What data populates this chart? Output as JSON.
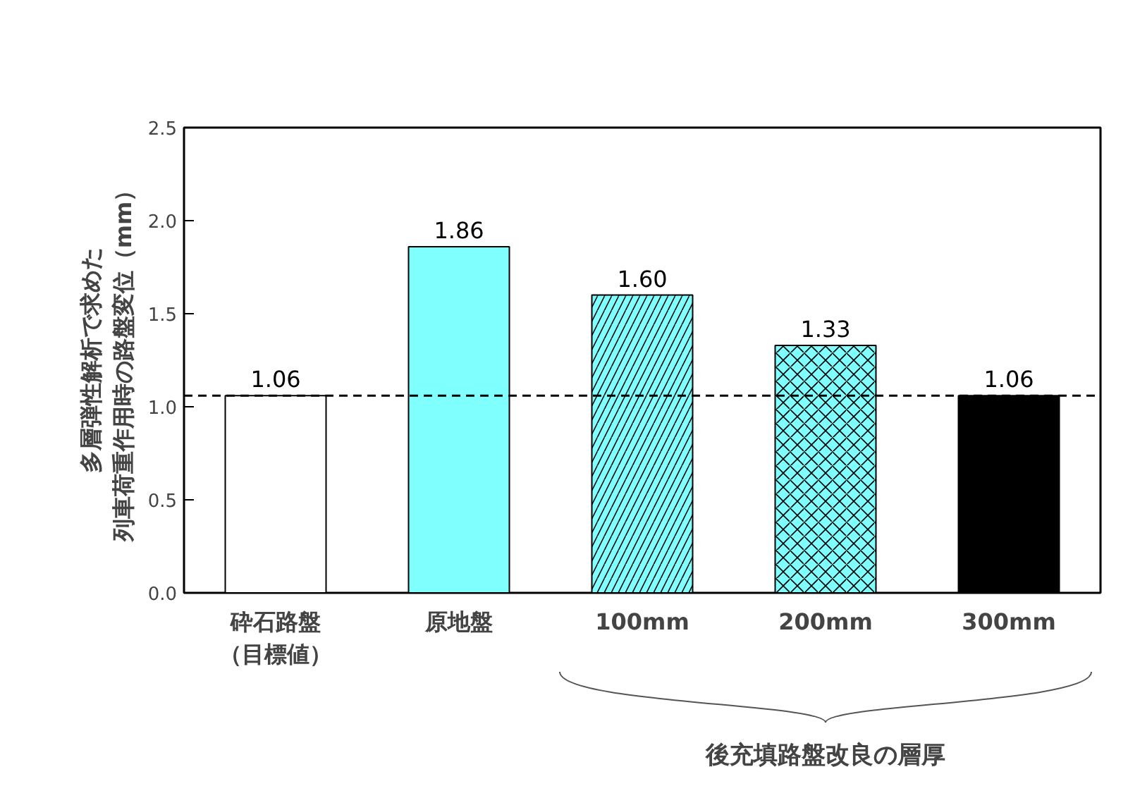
{
  "chart_data": {
    "type": "bar",
    "ylabel": "多層弾性解析で求めた列車荷重作用時の路盤変位（mm）",
    "categories": [
      "砕石路盤（目標値）",
      "原地盤",
      "100mm",
      "200mm",
      "300mm"
    ],
    "values": [
      1.06,
      1.86,
      1.6,
      1.33,
      1.06
    ],
    "value_labels": [
      "1.06",
      "1.86",
      "1.60",
      "1.33",
      "1.06"
    ],
    "colors": [
      "#ffffff",
      "#80ffff",
      "#80ffff",
      "#80ffff",
      "#000000"
    ],
    "ylim": [
      0,
      2.5
    ],
    "yticks": [
      {
        "value": 0,
        "label": "0.0"
      },
      {
        "value": 0.5,
        "label": "0.5"
      },
      {
        "value": 1,
        "label": "1.0"
      },
      {
        "value": 1.5,
        "label": "1.5"
      },
      {
        "value": 2,
        "label": "2.0"
      },
      {
        "value": 2.5,
        "label": "2.5"
      }
    ],
    "ref_lines": [
      {
        "axis": "y",
        "value": 1.06,
        "color": "#000000",
        "line_style": "dashed"
      }
    ],
    "annotations": [
      "後充填路盤改良の層厚"
    ],
    "grid": false
  }
}
